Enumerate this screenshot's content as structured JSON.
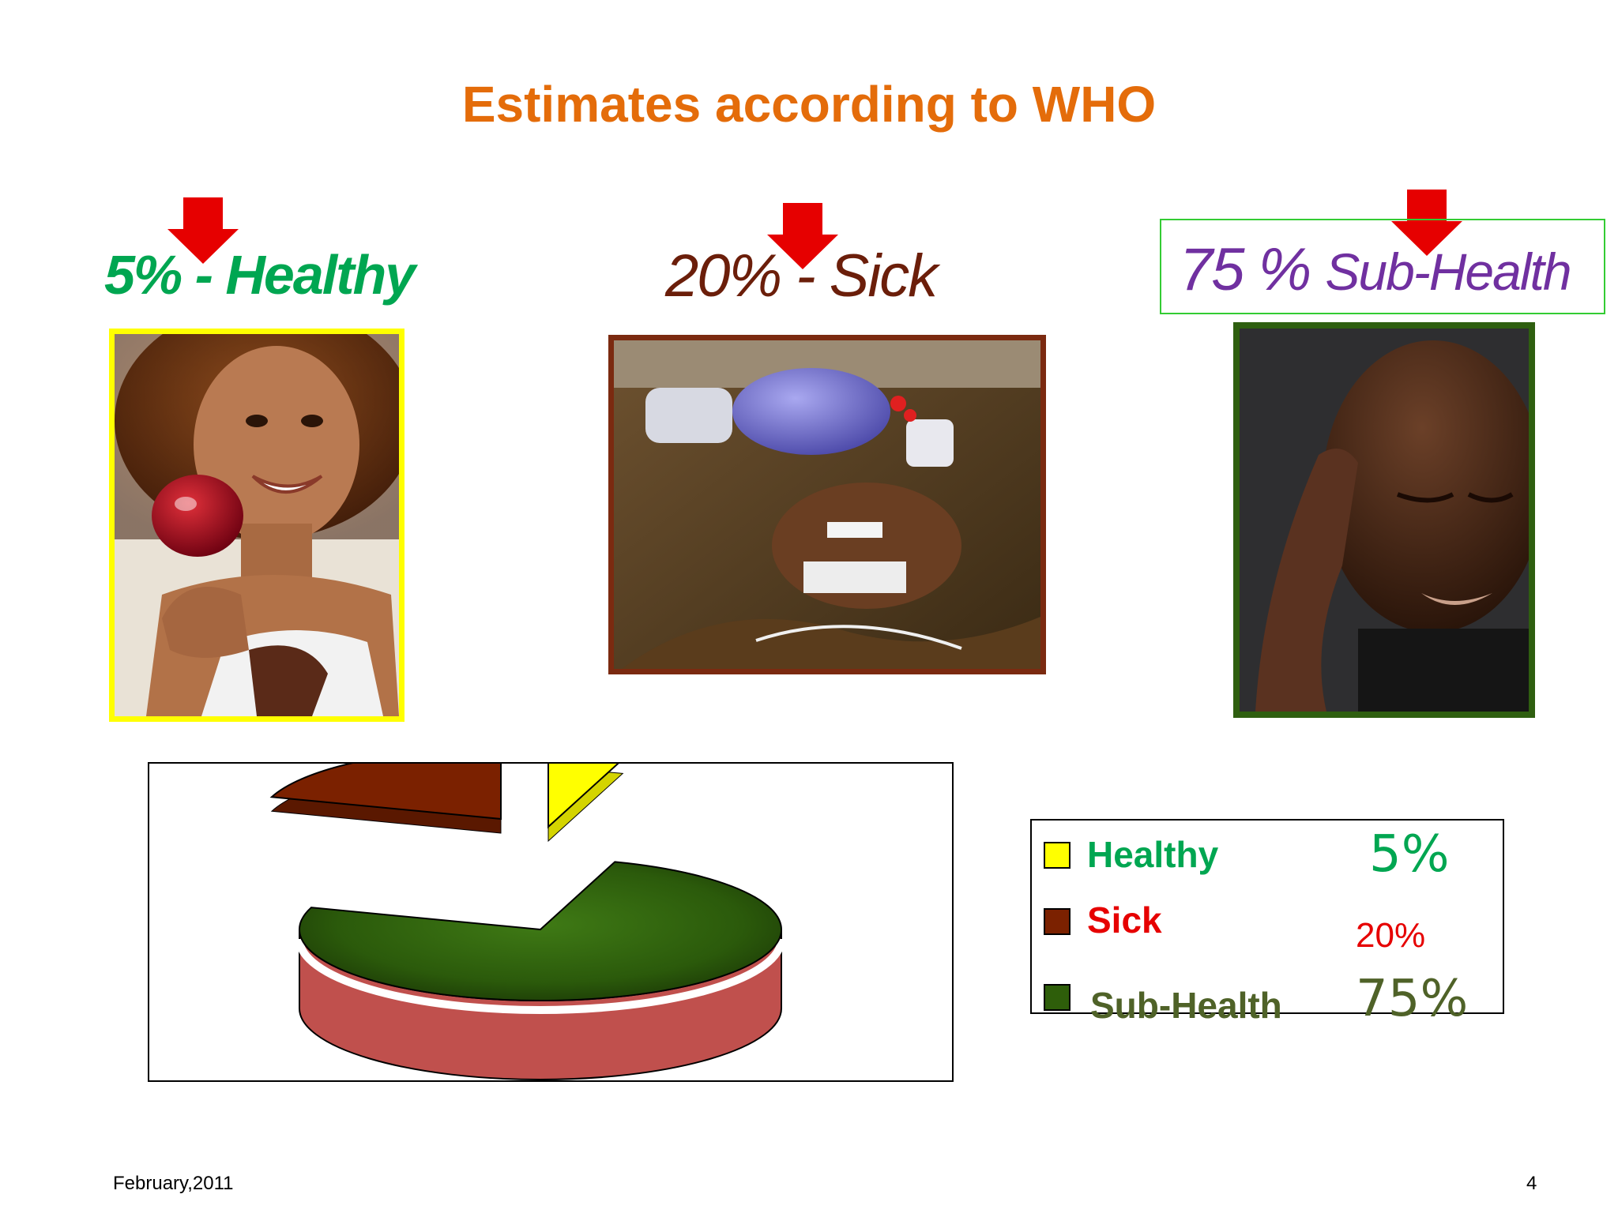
{
  "title": "Estimates  according to WHO",
  "headers": {
    "healthy": "5% - Healthy",
    "sick": "20% - Sick",
    "sub_health_pct": "75 %",
    "sub_health_label": "Sub-Health"
  },
  "legend": {
    "healthy_label": "Healthy",
    "healthy_value": "5%",
    "sick_label": "Sick",
    "sick_value": "20%",
    "sub_label": "Sub-Health",
    "sub_value": "75%"
  },
  "footer": {
    "date": "February,2011",
    "page": "4"
  },
  "colors": {
    "title": "#E46C0A",
    "healthy": "#FFFF00",
    "sick": "#7B2100",
    "sub_health": "#2E5E0A",
    "sub_health_side": "#C0504D",
    "arrow": "#E60000"
  },
  "chart_data": {
    "type": "pie",
    "style": "3d-exploded",
    "categories": [
      "Healthy",
      "Sick",
      "Sub-Health"
    ],
    "values": [
      5,
      20,
      75
    ]
  }
}
